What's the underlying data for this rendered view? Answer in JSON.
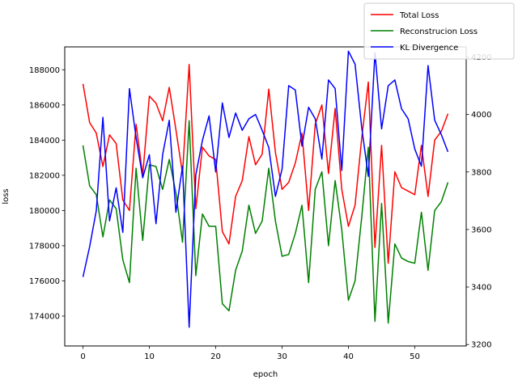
{
  "chart_data": {
    "type": "line",
    "xlabel": "epoch",
    "ylabel": "loss",
    "ylabel_right": "",
    "title": "",
    "xlim": [
      -2.75,
      57.75
    ],
    "ylim": [
      172300,
      189300
    ],
    "ylim_right": [
      3195,
      4235
    ],
    "x_ticks": [
      0,
      10,
      20,
      30,
      40,
      50
    ],
    "y_ticks": [
      174000,
      176000,
      178000,
      180000,
      182000,
      184000,
      186000,
      188000
    ],
    "y_ticks_right": [
      3200,
      3400,
      3600,
      3800,
      4000,
      4200
    ],
    "grid": false,
    "legend_placement": "top-right",
    "x": [
      0,
      1,
      2,
      3,
      4,
      5,
      6,
      7,
      8,
      9,
      10,
      11,
      12,
      13,
      14,
      15,
      16,
      17,
      18,
      19,
      20,
      21,
      22,
      23,
      24,
      25,
      26,
      27,
      28,
      29,
      30,
      31,
      32,
      33,
      34,
      35,
      36,
      37,
      38,
      39,
      40,
      41,
      42,
      43,
      44,
      45,
      46,
      47,
      48,
      49,
      50,
      51,
      52,
      53,
      54,
      55
    ],
    "series": [
      {
        "name": "Total Loss",
        "color": "#ff0000",
        "axis": "left",
        "values": [
          187200,
          185000,
          184400,
          182500,
          184300,
          183800,
          180600,
          180000,
          184900,
          182000,
          186500,
          186100,
          185100,
          187000,
          184600,
          182100,
          188300,
          180100,
          183600,
          183100,
          182900,
          178800,
          178100,
          180800,
          181700,
          184200,
          182600,
          183200,
          186900,
          183300,
          181200,
          181600,
          182700,
          184400,
          180000,
          184900,
          186000,
          182100,
          185800,
          181200,
          179100,
          180300,
          184100,
          187300,
          177900,
          183700,
          177000,
          182200,
          181300,
          181100,
          180900,
          183700,
          180800,
          184000,
          184500,
          185500
        ]
      },
      {
        "name": "Reconstrucion Loss",
        "color": "#008000",
        "axis": "left",
        "values": [
          183700,
          181400,
          180900,
          178500,
          180600,
          180100,
          177200,
          175900,
          182400,
          178300,
          182600,
          182500,
          181200,
          182900,
          181000,
          178200,
          185100,
          176300,
          179800,
          179100,
          179100,
          174700,
          174300,
          176600,
          177700,
          180300,
          178700,
          179400,
          182400,
          179400,
          177400,
          177500,
          178700,
          180300,
          175900,
          181200,
          182200,
          178000,
          181700,
          178900,
          174900,
          176000,
          179600,
          183600,
          173700,
          180400,
          173600,
          178100,
          177300,
          177100,
          177000,
          179900,
          176600,
          180000,
          180500,
          181600
        ]
      },
      {
        "name": "KL Divergence",
        "color": "#0000ff",
        "axis": "right",
        "values": [
          3435,
          3540,
          3665,
          3990,
          3630,
          3745,
          3590,
          4090,
          3920,
          3780,
          3860,
          3620,
          3860,
          3980,
          3660,
          3820,
          3260,
          3790,
          3910,
          3995,
          3800,
          4040,
          3920,
          4005,
          3945,
          3985,
          4000,
          3945,
          3885,
          3715,
          3810,
          4100,
          4085,
          3890,
          4025,
          3985,
          3845,
          4120,
          4090,
          3805,
          4220,
          4175,
          3955,
          3785,
          4215,
          3950,
          4100,
          4120,
          4020,
          3985,
          3880,
          3820,
          4170,
          3980,
          3930,
          3870
        ]
      }
    ]
  }
}
